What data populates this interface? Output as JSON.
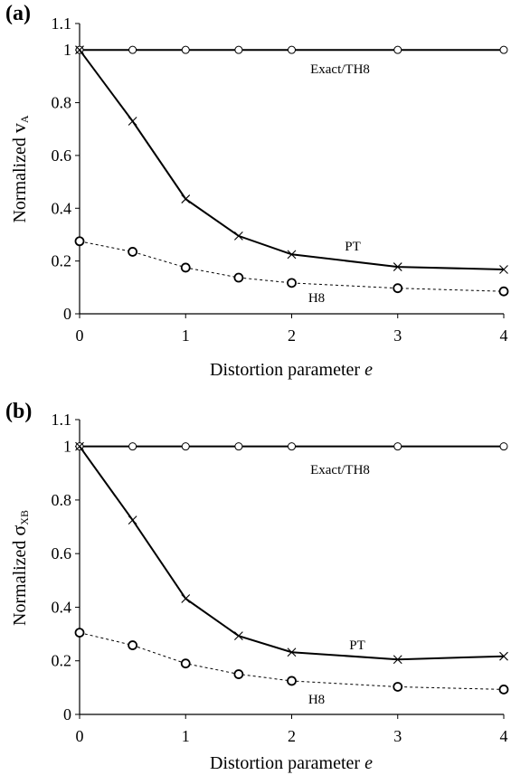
{
  "chart_data": [
    {
      "type": "line",
      "panel_label": "(a)",
      "xlabel": "Distortion parameter",
      "xlabel_var": "e",
      "ylabel": "Normalized ",
      "ylabel_sym": "v",
      "ylabel_sub": "A",
      "xlim": [
        0,
        4
      ],
      "ylim": [
        0,
        1.1
      ],
      "xticks": [
        "0",
        "1",
        "2",
        "3",
        "4"
      ],
      "yticks": [
        "0",
        "0.2",
        "0.4",
        "0.6",
        "0.8",
        "1",
        "1.1"
      ],
      "grid": false,
      "series": [
        {
          "name": "Exact/TH8",
          "style": "solid",
          "marker": "circle",
          "x": [
            0,
            0.5,
            1,
            1.5,
            2,
            3,
            4
          ],
          "y": [
            1,
            1,
            1,
            1,
            1,
            1,
            1
          ]
        },
        {
          "name": "PT",
          "style": "solid",
          "marker": "x",
          "x": [
            0,
            0.5,
            1,
            1.5,
            2,
            3,
            4
          ],
          "y": [
            1,
            0.73,
            0.435,
            0.295,
            0.225,
            0.178,
            0.168
          ]
        },
        {
          "name": "H8",
          "style": "dashed",
          "marker": "circle-bold",
          "x": [
            0,
            0.5,
            1,
            1.5,
            2,
            3,
            4
          ],
          "y": [
            0.275,
            0.235,
            0.175,
            0.137,
            0.117,
            0.097,
            0.085
          ]
        }
      ]
    },
    {
      "type": "line",
      "panel_label": "(b)",
      "xlabel": "Distortion parameter",
      "xlabel_var": "e",
      "ylabel": "Normalized ",
      "ylabel_sym": "σ",
      "ylabel_sub": "XB",
      "xlim": [
        0,
        4
      ],
      "ylim": [
        0,
        1.1
      ],
      "xticks": [
        "0",
        "1",
        "2",
        "3",
        "4"
      ],
      "yticks": [
        "0",
        "0.2",
        "0.4",
        "0.6",
        "0.8",
        "1",
        "1.1"
      ],
      "grid": false,
      "series": [
        {
          "name": "Exact/TH8",
          "style": "solid",
          "marker": "circle",
          "x": [
            0,
            0.5,
            1,
            1.5,
            2,
            3,
            4
          ],
          "y": [
            1,
            1,
            1,
            1,
            1,
            1,
            1
          ]
        },
        {
          "name": "PT",
          "style": "solid",
          "marker": "x",
          "x": [
            0,
            0.5,
            1,
            1.5,
            2,
            3,
            4
          ],
          "y": [
            1,
            0.725,
            0.432,
            0.293,
            0.232,
            0.205,
            0.217
          ]
        },
        {
          "name": "H8",
          "style": "dashed",
          "marker": "circle-bold",
          "x": [
            0,
            0.5,
            1,
            1.5,
            2,
            3,
            4
          ],
          "y": [
            0.305,
            0.258,
            0.19,
            0.15,
            0.125,
            0.103,
            0.093
          ]
        }
      ]
    }
  ]
}
